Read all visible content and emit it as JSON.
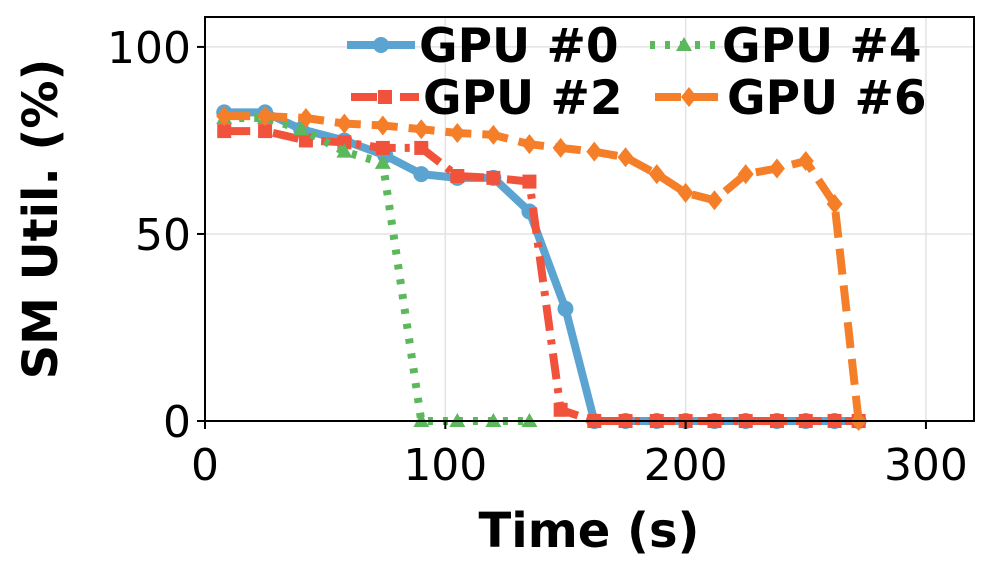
{
  "chart_data": {
    "type": "line",
    "title": "",
    "xlabel": "Time (s)",
    "ylabel": "SM Util. (%)",
    "xlim": [
      0,
      320
    ],
    "ylim": [
      0,
      108
    ],
    "xticks": [
      0,
      100,
      200,
      300
    ],
    "yticks": [
      0,
      50,
      100
    ],
    "grid": true,
    "legend_position": "top-right",
    "series": [
      {
        "name": "GPU #0",
        "color": "#5ba3d0",
        "linestyle": "solid",
        "marker": "circle",
        "x": [
          8,
          25,
          40,
          58,
          75,
          90,
          105,
          120,
          135,
          150,
          162,
          175,
          188,
          200,
          212,
          225,
          238,
          250,
          262,
          272
        ],
        "y": [
          82.5,
          82.5,
          78,
          75,
          71,
          66,
          65,
          65,
          56,
          30,
          0,
          0,
          0,
          0,
          0,
          0,
          0,
          0,
          0,
          0
        ]
      },
      {
        "name": "GPU #2",
        "color": "#f0523c",
        "linestyle": "dashdot",
        "marker": "square",
        "x": [
          8,
          25,
          42,
          58,
          74,
          90,
          105,
          120,
          135,
          148,
          162,
          175,
          188,
          200,
          212,
          225,
          238,
          250,
          262,
          272
        ],
        "y": [
          77.5,
          77.5,
          75,
          74.5,
          73,
          73,
          65.5,
          65,
          64,
          3,
          0,
          0,
          0,
          0,
          0,
          0,
          0,
          0,
          0,
          0
        ]
      },
      {
        "name": "GPU #4",
        "color": "#5cb85c",
        "linestyle": "dotted",
        "marker": "triangle",
        "x": [
          8,
          25,
          40,
          58,
          74,
          90,
          105,
          120,
          135
        ],
        "y": [
          81,
          81,
          78,
          72,
          69,
          0,
          0,
          0,
          0
        ]
      },
      {
        "name": "GPU #6",
        "color": "#f57f29",
        "linestyle": "dashed",
        "marker": "diamond",
        "x": [
          8,
          25,
          42,
          58,
          74,
          90,
          105,
          120,
          135,
          148,
          162,
          175,
          188,
          200,
          212,
          225,
          238,
          250,
          262,
          272
        ],
        "y": [
          81.5,
          81.5,
          81,
          79.5,
          79,
          78,
          77,
          76.5,
          74,
          73,
          72,
          70.5,
          66,
          61,
          59,
          66,
          67.5,
          69.5,
          58,
          0
        ]
      }
    ]
  }
}
